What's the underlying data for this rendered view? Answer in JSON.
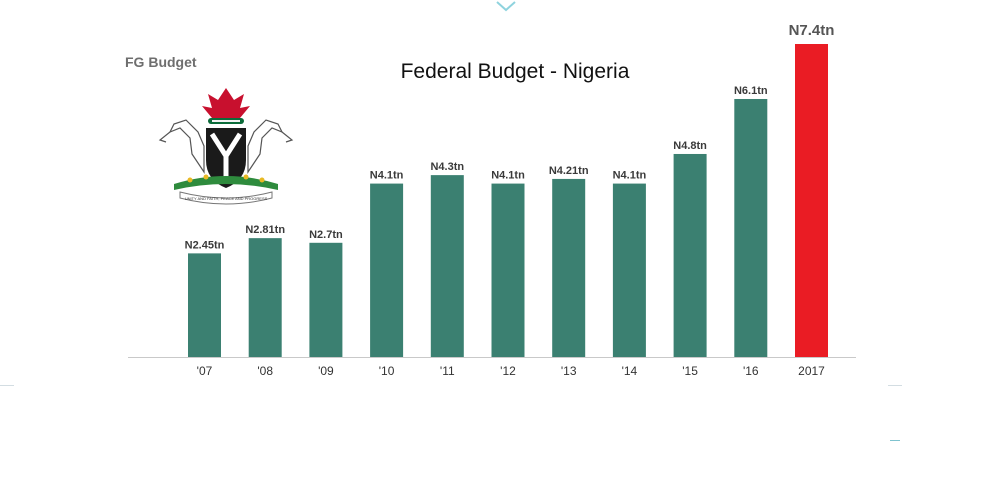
{
  "page": {
    "caption": "FG Budget",
    "title": "Federal Budget - Nigeria",
    "crest_motto": "UNITY AND FAITH, PEACE AND PROGRESS"
  },
  "colors": {
    "bar": "#3b8071",
    "highlight": "#ea1c24",
    "label": "#3a3a3a",
    "axis": "#c9c9c9"
  },
  "chart_data": {
    "type": "bar",
    "title": "Federal Budget - Nigeria",
    "xlabel": "",
    "ylabel": "",
    "unit": "trillion naira",
    "categories": [
      "'07",
      "'08",
      "'09",
      "'10",
      "'11",
      "'12",
      "'13",
      "'14",
      "'15",
      "'16",
      "2017"
    ],
    "values": [
      2.45,
      2.81,
      2.7,
      4.1,
      4.3,
      4.1,
      4.21,
      4.1,
      4.8,
      6.1,
      7.4
    ],
    "data_labels": [
      "N2.45tn",
      "N2.81tn",
      "N2.7tn",
      "N4.1tn",
      "N4.3tn",
      "N4.1tn",
      "N4.21tn",
      "N4.1tn",
      "N4.8tn",
      "N6.1tn",
      "N7.4tn"
    ],
    "highlight_index": 10,
    "ylim": [
      0,
      7.4
    ],
    "grid": false,
    "legend": "none"
  }
}
